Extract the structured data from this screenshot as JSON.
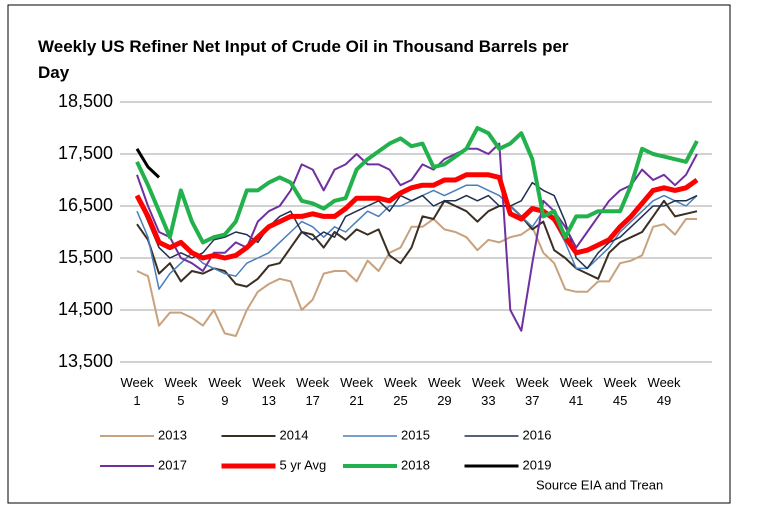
{
  "chart_data": {
    "type": "line",
    "title": "Weekly US Refiner Net Input of Crude Oil in Thousand Barrels per Day",
    "source": "Source EIA and Trean",
    "categories": [
      "Week 1",
      null,
      null,
      null,
      "Week 5",
      null,
      null,
      null,
      "Week 9",
      null,
      null,
      null,
      "Week 13",
      null,
      null,
      null,
      "Week 17",
      null,
      null,
      null,
      "Week 21",
      null,
      null,
      null,
      "Week 25",
      null,
      null,
      null,
      "Week 29",
      null,
      null,
      null,
      "Week 33",
      null,
      null,
      null,
      "Week 37",
      null,
      null,
      null,
      "Week 41",
      null,
      null,
      null,
      "Week 45",
      null,
      null,
      null,
      "Week 49",
      null,
      null,
      null
    ],
    "ylim": [
      13500,
      18500
    ],
    "yticks": [
      {
        "value": 13500,
        "label": "13,500"
      },
      {
        "value": 14500,
        "label": "14,500"
      },
      {
        "value": 15500,
        "label": "15,500"
      },
      {
        "value": 16500,
        "label": "16,500"
      },
      {
        "value": 17500,
        "label": "17,500"
      },
      {
        "value": 18500,
        "label": "18,500"
      }
    ],
    "grid": true,
    "legend": "bottom",
    "series": [
      {
        "name": "2013",
        "color": "#c8a27e",
        "width": 2,
        "values": [
          15250,
          15150,
          14200,
          14450,
          14450,
          14350,
          14200,
          14500,
          14050,
          14000,
          14500,
          14850,
          15000,
          15100,
          15050,
          14500,
          14700,
          15200,
          15250,
          15250,
          15050,
          15450,
          15250,
          15600,
          15700,
          16100,
          16100,
          16250,
          16050,
          16000,
          15900,
          15650,
          15850,
          15800,
          15900,
          15950,
          16100,
          15600,
          15400,
          14900,
          14850,
          14850,
          15050,
          15050,
          15400,
          15450,
          15550,
          16100,
          16150,
          15950,
          16250,
          16250
        ]
      },
      {
        "name": "2014",
        "color": "#3b2e22",
        "width": 2,
        "values": [
          16150,
          15850,
          15200,
          15400,
          15050,
          15250,
          15200,
          15300,
          15250,
          15000,
          14950,
          15100,
          15350,
          15400,
          15700,
          16000,
          15950,
          15700,
          16000,
          15850,
          16050,
          15950,
          16050,
          15550,
          15400,
          15700,
          16300,
          16250,
          16600,
          16500,
          16400,
          16200,
          16400,
          16500,
          16500,
          16300,
          16050,
          16200,
          15650,
          15500,
          15300,
          15200,
          15100,
          15600,
          15800,
          15900,
          16000,
          16300,
          16600,
          16300,
          16350,
          16400
        ]
      },
      {
        "name": "2015",
        "color": "#4a7ebb",
        "width": 1.5,
        "values": [
          16400,
          15900,
          14900,
          15200,
          15400,
          15600,
          15400,
          15300,
          15200,
          15150,
          15400,
          15500,
          15600,
          15800,
          16000,
          16200,
          16100,
          15900,
          16100,
          16000,
          16200,
          16400,
          16300,
          16500,
          16500,
          16600,
          16700,
          16800,
          16700,
          16800,
          16900,
          16900,
          16800,
          16700,
          16500,
          16300,
          16100,
          16400,
          16200,
          15800,
          15300,
          15300,
          15500,
          15700,
          16000,
          16200,
          16400,
          16600,
          16700,
          16600,
          16500,
          16700
        ]
      },
      {
        "name": "2016",
        "color": "#1f2f4f",
        "width": 1.5,
        "values": [
          16700,
          16200,
          15700,
          15500,
          15600,
          15500,
          15600,
          15850,
          15900,
          16000,
          15950,
          15800,
          16100,
          16300,
          16400,
          16000,
          15850,
          16000,
          15900,
          16300,
          16400,
          16500,
          16600,
          16400,
          16700,
          16600,
          16700,
          16500,
          16600,
          16600,
          16700,
          16600,
          16700,
          16500,
          16500,
          16600,
          16950,
          16800,
          16700,
          16200,
          15500,
          15300,
          15600,
          15800,
          15900,
          16100,
          16300,
          16500,
          16500,
          16600,
          16600,
          16700
        ]
      },
      {
        "name": "2017",
        "color": "#7030a0",
        "width": 2,
        "values": [
          17100,
          16500,
          16000,
          15900,
          15500,
          15400,
          15250,
          15600,
          15600,
          15800,
          15700,
          16200,
          16400,
          16500,
          16800,
          17300,
          17200,
          16800,
          17200,
          17300,
          17500,
          17300,
          17300,
          17200,
          16900,
          17000,
          17300,
          17200,
          17400,
          17500,
          17600,
          17600,
          17500,
          17700,
          14500,
          14100,
          15400,
          16600,
          16400,
          16100,
          15700,
          16000,
          16300,
          16600,
          16800,
          16900,
          17200,
          17000,
          17100,
          16900,
          17100,
          17500
        ]
      },
      {
        "name": "5 yr Avg",
        "color": "#ff0000",
        "width": 5,
        "values": [
          16700,
          16300,
          15800,
          15700,
          15800,
          15600,
          15500,
          15550,
          15500,
          15550,
          15700,
          15900,
          16100,
          16200,
          16300,
          16300,
          16350,
          16300,
          16300,
          16450,
          16650,
          16650,
          16650,
          16600,
          16750,
          16850,
          16900,
          16900,
          17000,
          17000,
          17100,
          17100,
          17100,
          17050,
          16350,
          16250,
          16450,
          16400,
          16250,
          15900,
          15600,
          15650,
          15750,
          15850,
          16100,
          16300,
          16550,
          16800,
          16850,
          16800,
          16850,
          17000
        ]
      },
      {
        "name": "2018",
        "color": "#22b14c",
        "width": 4,
        "values": [
          17350,
          16900,
          16400,
          15900,
          16800,
          16200,
          15800,
          15900,
          15950,
          16200,
          16800,
          16800,
          16950,
          17050,
          16950,
          16600,
          16550,
          16450,
          16600,
          16650,
          17200,
          17400,
          17550,
          17700,
          17800,
          17650,
          17700,
          17250,
          17300,
          17450,
          17600,
          18000,
          17900,
          17600,
          17700,
          17900,
          17400,
          16300,
          16400,
          15900,
          16300,
          16300,
          16400,
          16400,
          16400,
          16900,
          17600,
          17500,
          17450,
          17400,
          17350,
          17750
        ]
      },
      {
        "name": "2019",
        "color": "#000000",
        "width": 3,
        "values": [
          17600,
          17250,
          17050,
          null,
          null,
          null,
          null,
          null,
          null,
          null,
          null,
          null,
          null,
          null,
          null,
          null,
          null,
          null,
          null,
          null,
          null,
          null,
          null,
          null,
          null,
          null,
          null,
          null,
          null,
          null,
          null,
          null,
          null,
          null,
          null,
          null,
          null,
          null,
          null,
          null,
          null,
          null,
          null,
          null,
          null,
          null,
          null,
          null,
          null,
          null,
          null,
          null
        ]
      }
    ]
  }
}
